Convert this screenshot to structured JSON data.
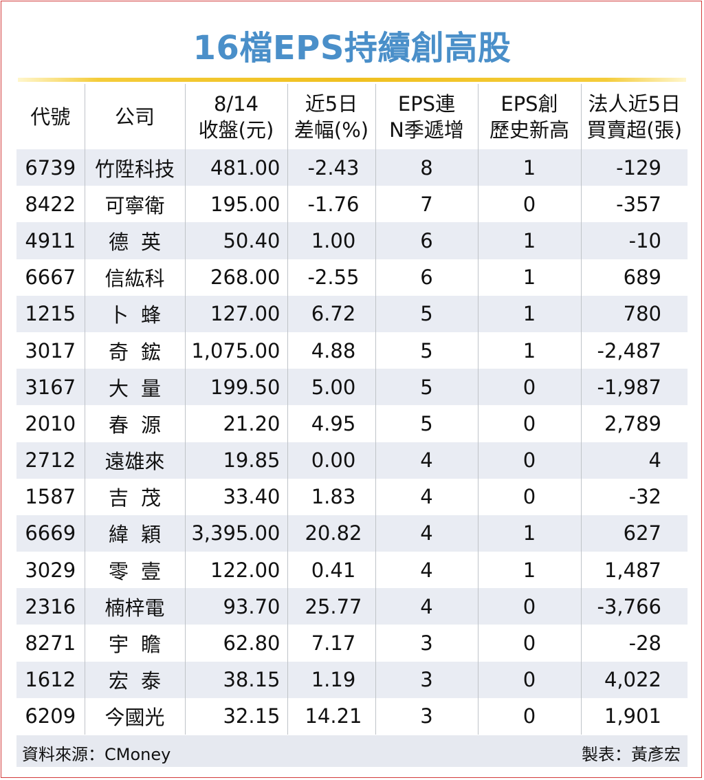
{
  "title": "16檔EPS持續創高股",
  "headers": {
    "code": "代號",
    "company": "公司",
    "close_line1": "8/14",
    "close_line2": "收盤(元)",
    "chg_line1": "近5日",
    "chg_line2": "差幅(%)",
    "eps_q_line1": "EPS連",
    "eps_q_line2": "N季遞增",
    "eps_high_line1": "EPS創",
    "eps_high_line2": "歷史新高",
    "inst_line1": "法人近5日",
    "inst_line2": "買賣超(張)"
  },
  "rows": [
    {
      "code": "6739",
      "name": "竹陞科技",
      "close": "481.00",
      "chg": "-2.43",
      "eps_q": "8",
      "eps_high": "1",
      "inst": "-129"
    },
    {
      "code": "8422",
      "name": "可寧衛",
      "close": "195.00",
      "chg": "-1.76",
      "eps_q": "7",
      "eps_high": "0",
      "inst": "-357"
    },
    {
      "code": "4911",
      "name": "德英",
      "close": "50.40",
      "chg": "1.00",
      "eps_q": "6",
      "eps_high": "1",
      "inst": "-10"
    },
    {
      "code": "6667",
      "name": "信紘科",
      "close": "268.00",
      "chg": "-2.55",
      "eps_q": "6",
      "eps_high": "1",
      "inst": "689"
    },
    {
      "code": "1215",
      "name": "卜蜂",
      "close": "127.00",
      "chg": "6.72",
      "eps_q": "5",
      "eps_high": "1",
      "inst": "780"
    },
    {
      "code": "3017",
      "name": "奇鋐",
      "close": "1,075.00",
      "chg": "4.88",
      "eps_q": "5",
      "eps_high": "1",
      "inst": "-2,487"
    },
    {
      "code": "3167",
      "name": "大量",
      "close": "199.50",
      "chg": "5.00",
      "eps_q": "5",
      "eps_high": "0",
      "inst": "-1,987"
    },
    {
      "code": "2010",
      "name": "春源",
      "close": "21.20",
      "chg": "4.95",
      "eps_q": "5",
      "eps_high": "0",
      "inst": "2,789"
    },
    {
      "code": "2712",
      "name": "遠雄來",
      "close": "19.85",
      "chg": "0.00",
      "eps_q": "4",
      "eps_high": "0",
      "inst": "4"
    },
    {
      "code": "1587",
      "name": "吉茂",
      "close": "33.40",
      "chg": "1.83",
      "eps_q": "4",
      "eps_high": "0",
      "inst": "-32"
    },
    {
      "code": "6669",
      "name": "緯穎",
      "close": "3,395.00",
      "chg": "20.82",
      "eps_q": "4",
      "eps_high": "1",
      "inst": "627"
    },
    {
      "code": "3029",
      "name": "零壹",
      "close": "122.00",
      "chg": "0.41",
      "eps_q": "4",
      "eps_high": "1",
      "inst": "1,487"
    },
    {
      "code": "2316",
      "name": "楠梓電",
      "close": "93.70",
      "chg": "25.77",
      "eps_q": "4",
      "eps_high": "0",
      "inst": "-3,766"
    },
    {
      "code": "8271",
      "name": "宇瞻",
      "close": "62.80",
      "chg": "7.17",
      "eps_q": "3",
      "eps_high": "0",
      "inst": "-28"
    },
    {
      "code": "1612",
      "name": "宏泰",
      "close": "38.15",
      "chg": "1.19",
      "eps_q": "3",
      "eps_high": "0",
      "inst": "4,022"
    },
    {
      "code": "6209",
      "name": "今國光",
      "close": "32.15",
      "chg": "14.21",
      "eps_q": "3",
      "eps_high": "0",
      "inst": "1,901"
    }
  ],
  "footer": {
    "source": "資料來源：CMoney",
    "maker": "製表：黃彥宏"
  },
  "colors": {
    "title": "#4a8fc9",
    "rule": "#f0c020",
    "stripe": "#e9ecf3",
    "border": "#d23a3a"
  }
}
